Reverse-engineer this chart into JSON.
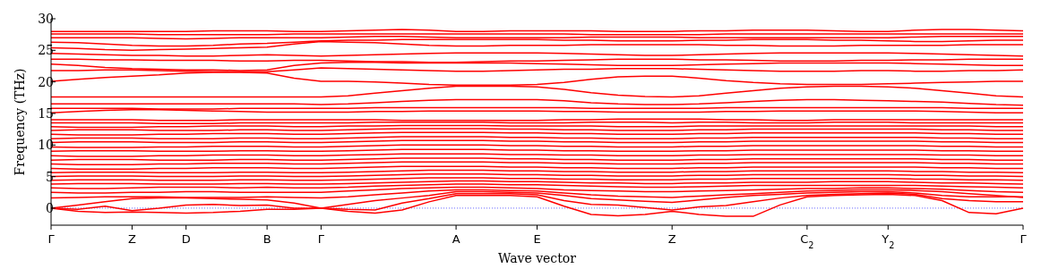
{
  "chart_data": {
    "type": "line",
    "xlabel": "Wave vector",
    "ylabel": "Frequency (THz)",
    "categories": [
      "Γ",
      null,
      null,
      "Z",
      null,
      "D",
      null,
      null,
      "B",
      null,
      "Γ",
      null,
      null,
      null,
      null,
      "A",
      null,
      null,
      "E",
      null,
      null,
      null,
      null,
      "Z",
      null,
      null,
      null,
      null,
      "C$_{2}$",
      null,
      null,
      "Y$_{2}$",
      null,
      null,
      null,
      null,
      "Γ"
    ],
    "ylim": [
      -2.7,
      30
    ],
    "yticks": [
      0,
      5,
      10,
      15,
      20,
      25,
      30
    ],
    "legend": false,
    "marker": "none",
    "line_style": "solid",
    "ref_lines": [
      {
        "axis": "y",
        "value": 0,
        "color": "#0000ff",
        "line_style": "dotted"
      }
    ],
    "series": [
      {
        "color": "#ff0000",
        "values": [
          0,
          -0.5,
          -0.7,
          -0.6,
          -0.7,
          -0.8,
          -0.7,
          -0.5,
          -0.2,
          -0.2,
          0,
          -0.5,
          -0.8,
          -0.3,
          1.0,
          2.0,
          2.0,
          2.0,
          1.8,
          0.3,
          -1.0,
          -1.2,
          -1.0,
          -0.5,
          -1.0,
          -1.3,
          -1.3,
          0.5,
          1.8,
          2.0,
          2.1,
          2.2,
          2.0,
          1.2,
          -0.7,
          -0.9,
          0
        ]
      },
      {
        "color": "#ff0000",
        "values": [
          0,
          -0.2,
          0.3,
          -0.4,
          0.0,
          0.5,
          0.6,
          0.4,
          0.5,
          0.0,
          0,
          -0.2,
          -0.3,
          0.8,
          1.5,
          2.3,
          2.3,
          2.3,
          2.1,
          1.2,
          0.6,
          0.5,
          0.1,
          -0.3,
          0.2,
          0.4,
          1.0,
          1.6,
          2.0,
          2.2,
          2.3,
          2.4,
          2.2,
          1.5,
          1.2,
          1.0,
          1.0
        ]
      },
      {
        "color": "#ff0000",
        "values": [
          0,
          0.5,
          1.0,
          1.5,
          1.6,
          1.6,
          1.5,
          1.4,
          1.3,
          0.8,
          0,
          0.6,
          1.2,
          1.6,
          2.0,
          2.6,
          2.6,
          2.5,
          2.4,
          2.0,
          1.5,
          1.3,
          1.1,
          0.9,
          1.3,
          1.7,
          2.0,
          2.2,
          2.4,
          2.5,
          2.6,
          2.6,
          2.4,
          2.0,
          1.8,
          1.8,
          1.8
        ]
      },
      {
        "color": "#ff0000",
        "values": [
          1.6,
          1.7,
          1.8,
          1.8,
          1.8,
          1.7,
          1.7,
          1.7,
          1.8,
          1.7,
          1.6,
          1.8,
          2.1,
          2.4,
          2.7,
          2.9,
          2.9,
          2.8,
          2.7,
          2.4,
          2.1,
          1.9,
          1.8,
          1.7,
          1.9,
          2.1,
          2.3,
          2.5,
          2.7,
          2.8,
          2.9,
          2.9,
          2.8,
          2.6,
          2.3,
          2.0,
          1.7
        ]
      },
      {
        "color": "#ff0000",
        "values": [
          2.5,
          2.4,
          2.4,
          2.5,
          2.5,
          2.6,
          2.6,
          2.5,
          2.5,
          2.5,
          2.5,
          2.7,
          2.9,
          3.1,
          3.2,
          3.3,
          3.3,
          3.2,
          3.1,
          2.9,
          2.8,
          2.7,
          2.6,
          2.6,
          2.7,
          2.8,
          2.9,
          3.0,
          3.1,
          3.1,
          3.2,
          3.2,
          3.1,
          3.0,
          2.8,
          2.6,
          2.5
        ]
      },
      {
        "color": "#ff0000",
        "values": [
          3.2,
          3.1,
          3.1,
          3.2,
          3.3,
          3.3,
          3.3,
          3.2,
          3.3,
          3.2,
          3.2,
          3.3,
          3.5,
          3.6,
          3.7,
          3.8,
          3.8,
          3.7,
          3.7,
          3.6,
          3.5,
          3.4,
          3.3,
          3.3,
          3.4,
          3.5,
          3.6,
          3.6,
          3.6,
          3.6,
          3.6,
          3.6,
          3.6,
          3.5,
          3.4,
          3.3,
          3.2
        ]
      },
      {
        "color": "#ff0000",
        "values": [
          3.8,
          3.9,
          3.9,
          3.9,
          3.8,
          3.8,
          3.8,
          3.9,
          3.9,
          3.8,
          3.8,
          3.9,
          4.0,
          4.1,
          4.2,
          4.3,
          4.3,
          4.2,
          4.2,
          4.1,
          4.0,
          4.0,
          3.9,
          3.9,
          4.0,
          4.0,
          4.1,
          4.1,
          4.1,
          4.2,
          4.2,
          4.2,
          4.1,
          4.0,
          4.0,
          3.9,
          3.8
        ]
      },
      {
        "color": "#ff0000",
        "values": [
          4.4,
          4.5,
          4.5,
          4.5,
          4.4,
          4.4,
          4.4,
          4.5,
          4.5,
          4.4,
          4.4,
          4.5,
          4.6,
          4.7,
          4.8,
          4.8,
          4.8,
          4.7,
          4.7,
          4.6,
          4.6,
          4.5,
          4.5,
          4.5,
          4.6,
          4.6,
          4.7,
          4.7,
          4.7,
          4.7,
          4.7,
          4.7,
          4.6,
          4.6,
          4.5,
          4.5,
          4.4
        ]
      },
      {
        "color": "#ff0000",
        "values": [
          5.0,
          5.1,
          5.1,
          5.1,
          5.0,
          5.0,
          5.0,
          5.1,
          5.1,
          5.0,
          5.0,
          5.1,
          5.2,
          5.3,
          5.4,
          5.4,
          5.4,
          5.3,
          5.3,
          5.2,
          5.2,
          5.1,
          5.1,
          5.1,
          5.2,
          5.2,
          5.3,
          5.3,
          5.3,
          5.3,
          5.3,
          5.3,
          5.2,
          5.2,
          5.1,
          5.1,
          5.0
        ]
      },
      {
        "color": "#ff0000",
        "values": [
          5.6,
          5.7,
          5.7,
          5.7,
          5.6,
          5.6,
          5.6,
          5.7,
          5.7,
          5.6,
          5.6,
          5.7,
          5.8,
          5.9,
          6.0,
          6.0,
          6.0,
          5.9,
          5.9,
          5.8,
          5.8,
          5.7,
          5.7,
          5.7,
          5.8,
          5.8,
          5.9,
          5.9,
          5.9,
          5.9,
          5.9,
          5.9,
          5.8,
          5.8,
          5.7,
          5.7,
          5.6
        ]
      },
      {
        "color": "#ff0000",
        "values": [
          6.3,
          6.2,
          6.2,
          6.2,
          6.3,
          6.3,
          6.4,
          6.4,
          6.4,
          6.3,
          6.3,
          6.4,
          6.5,
          6.6,
          6.6,
          6.6,
          6.6,
          6.5,
          6.5,
          6.4,
          6.4,
          6.3,
          6.3,
          6.3,
          6.4,
          6.4,
          6.5,
          6.5,
          6.5,
          6.5,
          6.5,
          6.5,
          6.5,
          6.4,
          6.4,
          6.3,
          6.3
        ]
      },
      {
        "color": "#ff0000",
        "values": [
          7.0,
          6.9,
          6.9,
          6.9,
          7.0,
          7.0,
          7.1,
          7.1,
          7.1,
          7.0,
          7.0,
          7.1,
          7.2,
          7.3,
          7.3,
          7.3,
          7.3,
          7.2,
          7.2,
          7.1,
          7.1,
          7.0,
          7.0,
          7.0,
          7.1,
          7.1,
          7.2,
          7.2,
          7.2,
          7.2,
          7.2,
          7.2,
          7.2,
          7.1,
          7.1,
          7.0,
          7.0
        ]
      },
      {
        "color": "#ff0000",
        "values": [
          7.6,
          7.7,
          7.7,
          7.7,
          7.6,
          7.6,
          7.6,
          7.7,
          7.7,
          7.6,
          7.6,
          7.7,
          7.8,
          7.9,
          7.9,
          7.9,
          7.9,
          7.8,
          7.8,
          7.7,
          7.7,
          7.6,
          7.6,
          7.6,
          7.7,
          7.7,
          7.8,
          7.8,
          7.8,
          7.8,
          7.8,
          7.8,
          7.8,
          7.7,
          7.7,
          7.6,
          7.6
        ]
      },
      {
        "color": "#ff0000",
        "values": [
          8.3,
          8.2,
          8.2,
          8.2,
          8.3,
          8.3,
          8.4,
          8.4,
          8.4,
          8.3,
          8.3,
          8.4,
          8.5,
          8.6,
          8.6,
          8.6,
          8.6,
          8.5,
          8.5,
          8.4,
          8.4,
          8.3,
          8.3,
          8.3,
          8.4,
          8.4,
          8.5,
          8.5,
          8.5,
          8.5,
          8.5,
          8.5,
          8.5,
          8.4,
          8.4,
          8.3,
          8.3
        ]
      },
      {
        "color": "#ff0000",
        "values": [
          9.0,
          9.1,
          9.1,
          9.1,
          9.0,
          9.0,
          9.0,
          9.1,
          9.1,
          9.0,
          9.0,
          9.1,
          9.2,
          9.3,
          9.3,
          9.3,
          9.3,
          9.2,
          9.2,
          9.1,
          9.1,
          9.0,
          9.0,
          9.0,
          9.1,
          9.1,
          9.2,
          9.2,
          9.2,
          9.2,
          9.2,
          9.2,
          9.2,
          9.1,
          9.1,
          9.0,
          9.0
        ]
      },
      {
        "color": "#ff0000",
        "values": [
          9.7,
          9.6,
          9.6,
          9.6,
          9.7,
          9.7,
          9.8,
          9.8,
          9.8,
          9.7,
          9.7,
          9.8,
          9.9,
          10.0,
          10.0,
          10.0,
          10.0,
          9.9,
          9.9,
          9.8,
          9.8,
          9.7,
          9.7,
          9.7,
          9.8,
          9.8,
          9.9,
          9.9,
          9.9,
          9.9,
          9.9,
          9.9,
          9.9,
          9.8,
          9.8,
          9.7,
          9.7
        ]
      },
      {
        "color": "#ff0000",
        "values": [
          10.4,
          10.5,
          10.5,
          10.5,
          10.4,
          10.4,
          10.4,
          10.5,
          10.5,
          10.4,
          10.4,
          10.5,
          10.6,
          10.7,
          10.7,
          10.7,
          10.7,
          10.6,
          10.6,
          10.5,
          10.5,
          10.4,
          10.4,
          10.4,
          10.5,
          10.5,
          10.6,
          10.6,
          10.6,
          10.6,
          10.6,
          10.6,
          10.6,
          10.5,
          10.5,
          10.4,
          10.4
        ]
      },
      {
        "color": "#ff0000",
        "values": [
          11.0,
          11.1,
          11.1,
          11.1,
          11.0,
          11.0,
          11.0,
          11.1,
          11.1,
          11.0,
          11.0,
          11.1,
          11.2,
          11.3,
          11.3,
          11.3,
          11.3,
          11.2,
          11.2,
          11.1,
          11.1,
          11.0,
          11.0,
          11.0,
          11.1,
          11.1,
          11.2,
          11.2,
          11.2,
          11.2,
          11.2,
          11.2,
          11.2,
          11.1,
          11.1,
          11.0,
          11.0
        ]
      },
      {
        "color": "#ff0000",
        "values": [
          11.7,
          11.6,
          11.6,
          11.6,
          11.7,
          11.7,
          11.8,
          11.8,
          11.8,
          11.7,
          11.7,
          11.8,
          11.9,
          12.0,
          12.0,
          12.0,
          12.0,
          11.9,
          11.9,
          11.8,
          11.8,
          11.7,
          11.7,
          11.7,
          11.8,
          11.8,
          11.9,
          11.9,
          11.9,
          11.9,
          11.9,
          11.9,
          11.9,
          11.8,
          11.8,
          11.7,
          11.7
        ]
      },
      {
        "color": "#ff0000",
        "values": [
          12.3,
          12.4,
          12.4,
          12.4,
          12.3,
          12.3,
          12.3,
          12.4,
          12.4,
          12.3,
          12.3,
          12.4,
          12.5,
          12.6,
          12.6,
          12.6,
          12.6,
          12.5,
          12.5,
          12.4,
          12.4,
          12.3,
          12.3,
          12.3,
          12.4,
          12.4,
          12.5,
          12.5,
          12.5,
          12.5,
          12.5,
          12.5,
          12.5,
          12.4,
          12.4,
          12.3,
          12.3
        ]
      },
      {
        "color": "#ff0000",
        "values": [
          12.9,
          12.8,
          12.8,
          12.8,
          12.9,
          12.9,
          13.0,
          13.0,
          13.0,
          12.9,
          12.9,
          13.0,
          13.0,
          13.1,
          13.1,
          13.1,
          13.1,
          13.0,
          13.0,
          13.0,
          13.0,
          12.9,
          12.9,
          12.9,
          13.0,
          13.0,
          13.0,
          13.0,
          13.0,
          13.0,
          13.0,
          13.0,
          13.0,
          13.0,
          13.0,
          12.9,
          12.9
        ]
      },
      {
        "color": "#ff0000",
        "values": [
          13.5,
          13.5,
          13.5,
          13.5,
          13.4,
          13.4,
          13.4,
          13.5,
          13.5,
          13.5,
          13.5,
          13.5,
          13.6,
          13.6,
          13.6,
          13.6,
          13.6,
          13.5,
          13.5,
          13.5,
          13.6,
          13.6,
          13.6,
          13.5,
          13.6,
          13.6,
          13.5,
          13.5,
          13.5,
          13.6,
          13.6,
          13.6,
          13.5,
          13.5,
          13.5,
          13.5,
          13.5
        ]
      },
      {
        "color": "#ff0000",
        "values": [
          14.0,
          14.0,
          14.0,
          14.0,
          13.9,
          13.9,
          13.9,
          14.0,
          14.0,
          14.0,
          14.0,
          14.0,
          14.0,
          13.9,
          13.9,
          13.9,
          13.9,
          13.9,
          13.9,
          14.0,
          14.0,
          14.1,
          14.1,
          14.1,
          14.1,
          14.0,
          14.0,
          13.9,
          13.9,
          14.0,
          14.0,
          14.0,
          14.0,
          14.0,
          14.0,
          14.0,
          14.0
        ]
      },
      {
        "color": "#ff0000",
        "values": [
          15.1,
          15.3,
          15.5,
          15.6,
          15.6,
          15.5,
          15.4,
          15.3,
          15.2,
          15.2,
          15.2,
          15.2,
          15.3,
          15.3,
          15.4,
          15.4,
          15.4,
          15.4,
          15.4,
          15.3,
          15.3,
          15.2,
          15.2,
          15.2,
          15.2,
          15.3,
          15.3,
          15.4,
          15.4,
          15.4,
          15.4,
          15.4,
          15.4,
          15.3,
          15.2,
          15.1,
          15.1
        ]
      },
      {
        "color": "#ff0000",
        "values": [
          15.8,
          15.8,
          15.8,
          15.8,
          15.7,
          15.7,
          15.7,
          15.8,
          15.8,
          15.8,
          15.8,
          15.8,
          15.9,
          15.9,
          15.9,
          15.9,
          15.9,
          15.9,
          15.9,
          15.9,
          15.8,
          15.8,
          15.8,
          15.8,
          15.8,
          15.9,
          15.9,
          15.9,
          15.9,
          15.9,
          15.9,
          15.9,
          15.9,
          15.9,
          15.8,
          15.8,
          15.8
        ]
      },
      {
        "color": "#ff0000",
        "values": [
          16.5,
          16.5,
          16.5,
          16.5,
          16.5,
          16.5,
          16.5,
          16.5,
          16.5,
          16.5,
          16.4,
          16.5,
          16.7,
          16.9,
          17.1,
          17.2,
          17.2,
          17.2,
          17.2,
          17.0,
          16.7,
          16.5,
          16.4,
          16.4,
          16.5,
          16.7,
          16.9,
          17.1,
          17.2,
          17.2,
          17.1,
          17.0,
          16.9,
          16.8,
          16.6,
          16.4,
          16.3
        ]
      },
      {
        "color": "#ff0000",
        "values": [
          17.6,
          17.6,
          17.6,
          17.6,
          17.6,
          17.6,
          17.6,
          17.6,
          17.6,
          17.6,
          17.6,
          17.8,
          18.2,
          18.6,
          19.0,
          19.3,
          19.3,
          19.3,
          19.2,
          18.8,
          18.3,
          17.9,
          17.7,
          17.6,
          17.8,
          18.2,
          18.6,
          19.0,
          19.2,
          19.3,
          19.3,
          19.2,
          19.0,
          18.6,
          18.2,
          17.8,
          17.6
        ]
      },
      {
        "color": "#ff0000",
        "values": [
          20.1,
          20.4,
          20.7,
          20.9,
          21.1,
          21.4,
          21.5,
          21.5,
          21.4,
          20.6,
          20.1,
          20.1,
          20.0,
          19.8,
          19.6,
          19.5,
          19.5,
          19.5,
          19.6,
          19.9,
          20.4,
          20.8,
          20.9,
          20.9,
          20.6,
          20.2,
          19.9,
          19.7,
          19.6,
          19.6,
          19.6,
          19.7,
          19.8,
          19.9,
          20.0,
          20.1,
          20.1
        ]
      },
      {
        "color": "#ff0000",
        "values": [
          21.8,
          21.8,
          21.9,
          21.9,
          21.8,
          21.7,
          21.6,
          21.6,
          21.6,
          21.9,
          22.2,
          22.1,
          22.0,
          21.9,
          21.8,
          21.7,
          21.7,
          21.8,
          21.9,
          22.0,
          22.0,
          22.1,
          22.1,
          22.1,
          22.0,
          21.9,
          21.8,
          21.7,
          21.7,
          21.7,
          21.8,
          21.8,
          21.7,
          21.7,
          21.8,
          21.8,
          21.9
        ]
      },
      {
        "color": "#ff0000",
        "values": [
          22.8,
          22.6,
          22.3,
          22.1,
          22.0,
          21.9,
          21.9,
          21.8,
          21.9,
          22.6,
          23.0,
          23.1,
          23.1,
          23.0,
          23.0,
          23.0,
          23.0,
          23.0,
          22.9,
          22.8,
          22.7,
          22.6,
          22.6,
          22.6,
          22.7,
          22.8,
          22.9,
          23.0,
          23.0,
          23.0,
          23.0,
          23.0,
          22.9,
          22.8,
          22.7,
          22.6,
          22.6
        ]
      },
      {
        "color": "#ff0000",
        "values": [
          23.6,
          23.6,
          23.5,
          23.5,
          23.4,
          23.4,
          23.4,
          23.3,
          23.3,
          23.4,
          23.4,
          23.3,
          23.2,
          23.2,
          23.1,
          23.1,
          23.2,
          23.3,
          23.3,
          23.4,
          23.5,
          23.6,
          23.6,
          23.6,
          23.5,
          23.5,
          23.4,
          23.3,
          23.3,
          23.3,
          23.4,
          23.4,
          23.5,
          23.5,
          23.6,
          23.6,
          23.6
        ]
      },
      {
        "color": "#ff0000",
        "values": [
          24.5,
          24.4,
          24.3,
          24.2,
          24.2,
          24.1,
          24.1,
          24.2,
          24.3,
          24.2,
          24.1,
          24.2,
          24.3,
          24.4,
          24.5,
          24.6,
          24.6,
          24.6,
          24.6,
          24.5,
          24.4,
          24.3,
          24.2,
          24.2,
          24.3,
          24.4,
          24.5,
          24.6,
          24.6,
          24.6,
          24.6,
          24.6,
          24.5,
          24.4,
          24.3,
          24.2,
          24.1
        ]
      },
      {
        "color": "#ff0000",
        "values": [
          25.4,
          25.3,
          25.1,
          25.0,
          25.1,
          25.2,
          25.3,
          25.4,
          25.5,
          26.0,
          26.4,
          26.3,
          26.2,
          26.0,
          25.8,
          25.7,
          25.7,
          25.8,
          25.8,
          25.8,
          25.9,
          25.9,
          25.9,
          25.9,
          25.9,
          25.8,
          25.8,
          25.7,
          25.7,
          25.7,
          25.8,
          25.8,
          25.8,
          25.8,
          25.9,
          25.9,
          25.9
        ]
      },
      {
        "color": "#ff0000",
        "values": [
          26.3,
          26.2,
          26.0,
          25.8,
          25.7,
          25.7,
          25.8,
          26.0,
          26.1,
          26.3,
          26.5,
          26.6,
          26.6,
          26.7,
          26.7,
          26.7,
          26.7,
          26.7,
          26.7,
          26.6,
          26.6,
          26.5,
          26.5,
          26.5,
          26.6,
          26.6,
          26.7,
          26.7,
          26.7,
          26.6,
          26.6,
          26.5,
          26.4,
          26.4,
          26.5,
          26.6,
          26.6
        ]
      },
      {
        "color": "#ff0000",
        "values": [
          27.0,
          27.0,
          27.0,
          27.0,
          26.9,
          26.8,
          26.9,
          27.0,
          27.0,
          27.0,
          27.0,
          27.1,
          27.2,
          27.2,
          27.1,
          27.0,
          27.0,
          27.0,
          27.0,
          27.0,
          27.1,
          27.1,
          27.1,
          27.1,
          27.0,
          27.0,
          27.0,
          27.0,
          27.0,
          27.0,
          27.0,
          27.0,
          27.1,
          27.2,
          27.2,
          27.2,
          27.2
        ]
      },
      {
        "color": "#ff0000",
        "values": [
          27.6,
          27.6,
          27.6,
          27.6,
          27.5,
          27.5,
          27.5,
          27.5,
          27.5,
          27.6,
          27.6,
          27.6,
          27.6,
          27.6,
          27.6,
          27.6,
          27.6,
          27.6,
          27.6,
          27.6,
          27.5,
          27.5,
          27.5,
          27.5,
          27.5,
          27.6,
          27.6,
          27.6,
          27.6,
          27.6,
          27.6,
          27.6,
          27.6,
          27.6,
          27.6,
          27.6,
          27.6
        ]
      },
      {
        "color": "#ff0000",
        "values": [
          28.0,
          28.0,
          28.0,
          28.0,
          28.0,
          28.0,
          28.1,
          28.1,
          28.1,
          28.0,
          28.0,
          28.1,
          28.2,
          28.3,
          28.2,
          28.0,
          28.0,
          28.1,
          28.1,
          28.1,
          28.1,
          28.0,
          28.0,
          28.0,
          28.1,
          28.1,
          28.2,
          28.2,
          28.2,
          28.1,
          28.0,
          28.0,
          28.2,
          28.3,
          28.3,
          28.2,
          28.1
        ]
      }
    ]
  }
}
